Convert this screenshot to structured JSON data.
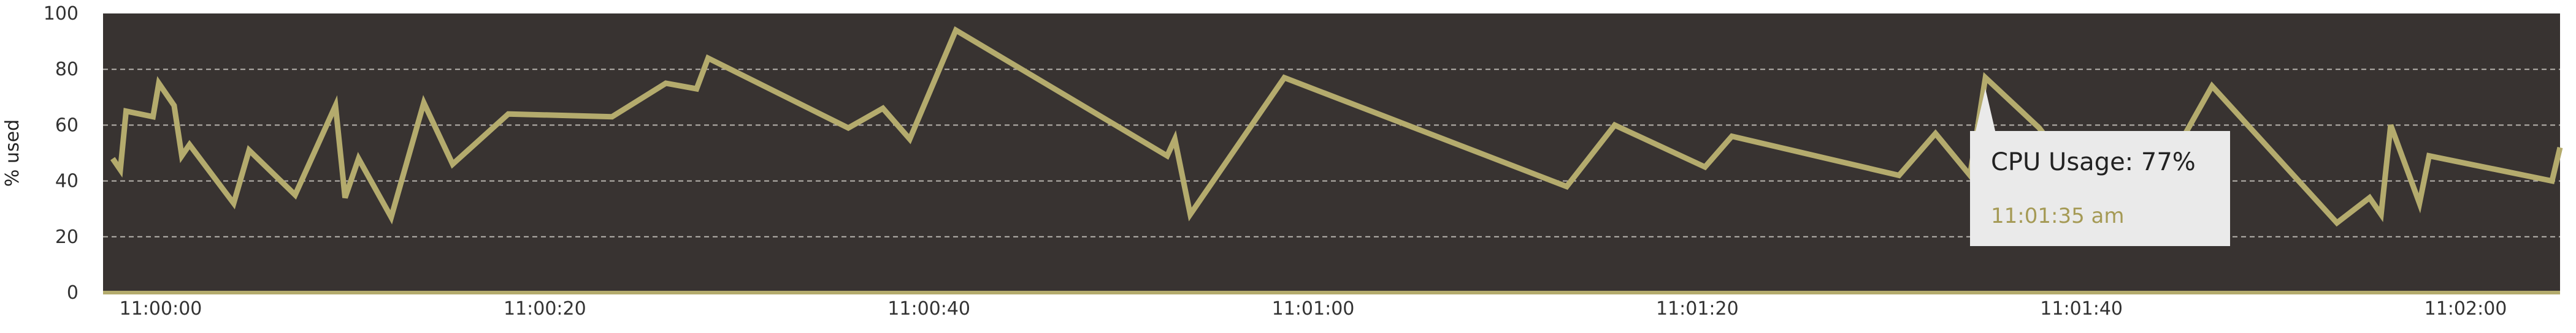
{
  "colors": {
    "plot_background": "#383331",
    "series_line": "#b4ab6d",
    "grid": "#b8b4ae",
    "tooltip_background": "#eaeaea",
    "tooltip_time": "#a59a55"
  },
  "chart_data": {
    "type": "line",
    "title": "",
    "xlabel": "",
    "ylabel": "% used",
    "ylim": [
      0,
      100
    ],
    "yticks": [
      0,
      20,
      40,
      60,
      80,
      100
    ],
    "xlim": [
      "11:00:00",
      "11:02:00"
    ],
    "xticks": [
      "11:00:00",
      "11:00:20",
      "11:00:40",
      "11:01:00",
      "11:01:20",
      "11:01:40",
      "11:02:00"
    ],
    "grid": true,
    "series": [
      {
        "name": "CPU Usage",
        "x": [
          "10:59:57.5",
          "10:59:57.9",
          "10:59:58.2",
          "10:59:59.6",
          "10:59:59.9",
          "11:00:00.7",
          "11:00:01.1",
          "11:00:01.5",
          "11:00:03.8",
          "11:00:04.6",
          "11:00:07.0",
          "11:00:09.1",
          "11:00:09.6",
          "11:00:10.3",
          "11:00:12.0",
          "11:00:13.7",
          "11:00:15.2",
          "11:00:18.1",
          "11:00:23.5",
          "11:00:26.3",
          "11:00:27.9",
          "11:00:28.5",
          "11:00:35.8",
          "11:00:37.6",
          "11:00:39.0",
          "11:00:41.4",
          "11:00:52.4",
          "11:00:52.8",
          "11:00:53.6",
          "11:00:58.5",
          "11:01:13.2",
          "11:01:15.7",
          "11:01:20.4",
          "11:01:21.8",
          "11:01:30.5",
          "11:01:32.4",
          "11:01:34.2",
          "11:01:35.0",
          "11:01:37.8",
          "11:01:39.9",
          "11:01:41.0",
          "11:01:43.7",
          "11:01:46.8",
          "11:01:53.3",
          "11:01:55.0",
          "11:01:55.6",
          "11:01:56.1",
          "11:01:57.6",
          "11:01:58.1",
          "11:02:04.5",
          "11:02:06.5"
        ],
        "y": [
          48,
          44,
          65,
          63,
          75,
          67,
          49,
          53,
          32,
          51,
          35,
          67,
          34,
          48,
          27,
          68,
          46,
          64,
          63,
          75,
          73,
          84,
          59,
          66,
          55,
          94,
          49,
          55,
          28,
          77,
          38,
          60,
          45,
          56,
          42,
          57,
          42,
          77,
          59,
          40,
          44,
          36,
          74,
          25,
          34,
          28,
          60,
          32,
          49,
          40,
          52
        ]
      }
    ],
    "tooltip": {
      "label": "CPU Usage: 77%",
      "time": "11:01:35 am",
      "x": "11:01:35",
      "y": 77
    }
  }
}
